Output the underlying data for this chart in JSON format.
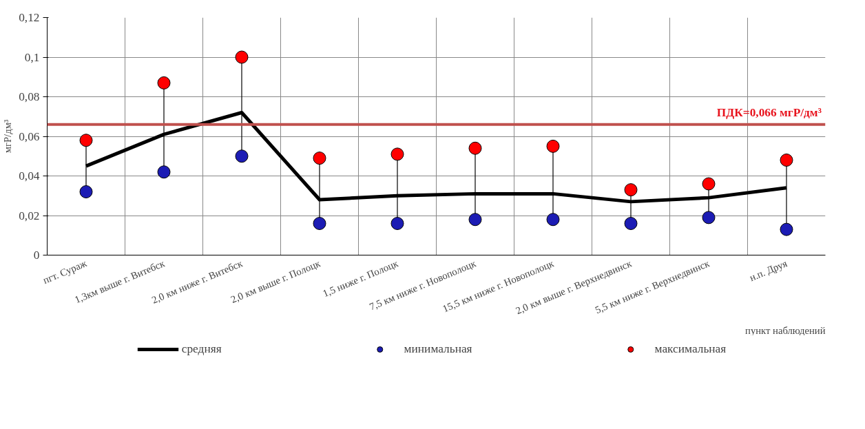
{
  "chart_data": {
    "type": "line",
    "categories": [
      "пгт. Сураж",
      "1,3км выше г. Витебск",
      "2,0 км ниже г. Витебск",
      "2,0 км выше г. Полоцк",
      "1,5 ниже г. Полоцк",
      "7,5 км ниже г. Новополоцк",
      "15,5 км ниже г. Новополоцк",
      "2,0 км выше г. Верхнедвинск",
      "5,5 км ниже г. Верхнедвинск",
      "н.п. Друя"
    ],
    "ylabel": "мгР/дм³",
    "xlabel": "пункт наблюдений",
    "ylim": [
      0,
      0.12
    ],
    "yticks": [
      0,
      {
        "value": 0.02,
        "label": "0,02"
      },
      {
        "value": 0.04,
        "label": "0,04"
      },
      {
        "value": 0.06,
        "label": "0,06"
      },
      {
        "value": 0.08,
        "label": "0,08"
      },
      {
        "value": 0.1,
        "label": "0,1"
      },
      {
        "value": 0.12,
        "label": "0,12"
      }
    ],
    "grid": true,
    "legend": "bottom",
    "series": [
      {
        "name": "средняя",
        "type": "line",
        "color": "#000000",
        "values": [
          0.045,
          0.061,
          0.072,
          0.028,
          0.03,
          0.031,
          0.031,
          0.027,
          0.029,
          0.034
        ]
      },
      {
        "name": "минимальная",
        "type": "scatter",
        "marker": "circle",
        "color": "#1c1cb4",
        "values": [
          0.032,
          0.042,
          0.05,
          0.016,
          0.016,
          0.018,
          0.018,
          0.016,
          0.019,
          0.013
        ]
      },
      {
        "name": "максимальная",
        "type": "scatter",
        "marker": "circle",
        "color": "#ff0000",
        "values": [
          0.058,
          0.087,
          0.1,
          0.049,
          0.051,
          0.054,
          0.055,
          0.033,
          0.036,
          0.048
        ]
      }
    ],
    "ref_lines": [
      {
        "axis": "y",
        "value": 0.066,
        "label": "ПДК=0,066 мгР/дм³",
        "color": "#c0504d"
      }
    ]
  }
}
